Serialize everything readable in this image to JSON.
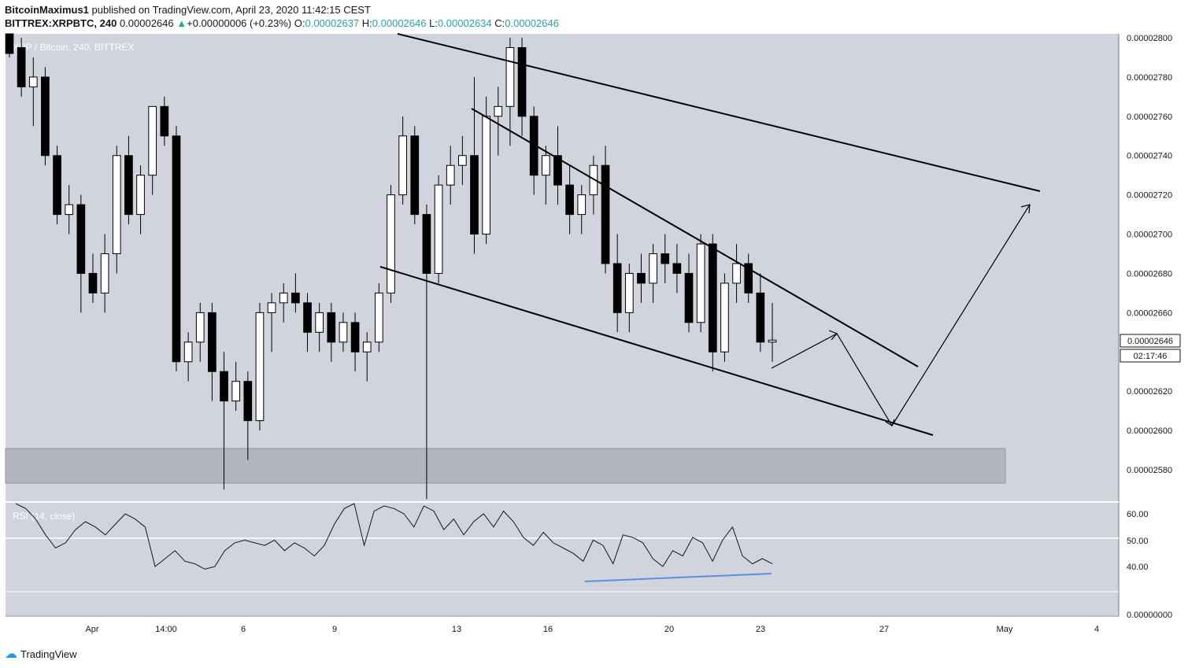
{
  "header": {
    "publisher": "BitcoinMaximus1",
    "published_text": "published on TradingView.com, April 23, 2020 11:42:15 CEST",
    "symbol": "BITTREX:XRPBTC, 240",
    "last": "0.00002646",
    "change_arrow": "▲",
    "change": "+0.00000006 (+0.23%)",
    "o_label": "O:",
    "o_value": "0.00002637",
    "h_label": "H:",
    "h_value": "0.00002646",
    "l_label": "L:",
    "l_value": "0.00002634",
    "c_label": "C:",
    "c_value": "0.00002646"
  },
  "chart_title": "XRP / Bitcoin, 240, BITTREX",
  "rsi_label": "RSI (14, close)",
  "price_label": "0.00002646",
  "countdown_label": "02:17:46",
  "price_axis_ticks": [
    "0.00002800",
    "0.00002780",
    "0.00002760",
    "0.00002740",
    "0.00002720",
    "0.00002700",
    "0.00002680",
    "0.00002660",
    "0.00002640",
    "0.00002620",
    "0.00002600",
    "0.00002580"
  ],
  "rsi_axis_ticks": [
    "60.00",
    "50.00",
    "40.00",
    "0.00000000"
  ],
  "time_axis_ticks": [
    "Apr",
    "14:00",
    "6",
    "9",
    "13",
    "16",
    "20",
    "23",
    "27",
    "May",
    "4"
  ],
  "brand": "TradingView",
  "colors": {
    "pane_bg": "#d1d4dc",
    "candle_up": "#ffffff",
    "candle_down": "#000000",
    "support_zone": "#b2b5be",
    "rsi_divergence": "#5b8fe0",
    "accent": "#26a69a"
  },
  "chart_data": {
    "type": "candlestick",
    "title": "XRP / Bitcoin, 240, BITTREX",
    "ylim": [
      2.56e-05,
      2.805e-05
    ],
    "x_ticks": [
      "Apr",
      "14:00",
      "6",
      "9",
      "13",
      "16",
      "20",
      "23",
      "27",
      "May",
      "4"
    ],
    "candles_ohlc_approx": [
      [
        2.805e-05,
        2.81e-05,
        2.79e-05,
        2.795e-05
      ],
      [
        2.795e-05,
        2.8e-05,
        2.77e-05,
        2.775e-05
      ],
      [
        2.775e-05,
        2.79e-05,
        2.755e-05,
        2.78e-05
      ],
      [
        2.78e-05,
        2.785e-05,
        2.735e-05,
        2.74e-05
      ],
      [
        2.74e-05,
        2.745e-05,
        2.705e-05,
        2.71e-05
      ],
      [
        2.71e-05,
        2.725e-05,
        2.7e-05,
        2.715e-05
      ],
      [
        2.715e-05,
        2.72e-05,
        2.66e-05,
        2.68e-05
      ],
      [
        2.68e-05,
        2.69e-05,
        2.665e-05,
        2.67e-05
      ],
      [
        2.67e-05,
        2.7e-05,
        2.66e-05,
        2.69e-05
      ],
      [
        2.69e-05,
        2.745e-05,
        2.68e-05,
        2.74e-05
      ],
      [
        2.74e-05,
        2.75e-05,
        2.705e-05,
        2.71e-05
      ],
      [
        2.71e-05,
        2.735e-05,
        2.7e-05,
        2.73e-05
      ],
      [
        2.73e-05,
        2.765e-05,
        2.72e-05,
        2.765e-05
      ],
      [
        2.765e-05,
        2.77e-05,
        2.745e-05,
        2.75e-05
      ],
      [
        2.75e-05,
        2.755e-05,
        2.63e-05,
        2.635e-05
      ],
      [
        2.635e-05,
        2.65e-05,
        2.625e-05,
        2.645e-05
      ],
      [
        2.645e-05,
        2.665e-05,
        2.635e-05,
        2.66e-05
      ],
      [
        2.66e-05,
        2.665e-05,
        2.615e-05,
        2.63e-05
      ],
      [
        2.63e-05,
        2.64e-05,
        2.57e-05,
        2.615e-05
      ],
      [
        2.615e-05,
        2.635e-05,
        2.61e-05,
        2.625e-05
      ],
      [
        2.625e-05,
        2.63e-05,
        2.585e-05,
        2.605e-05
      ],
      [
        2.605e-05,
        2.665e-05,
        2.6e-05,
        2.66e-05
      ],
      [
        2.66e-05,
        2.67e-05,
        2.64e-05,
        2.665e-05
      ],
      [
        2.665e-05,
        2.675e-05,
        2.655e-05,
        2.67e-05
      ],
      [
        2.67e-05,
        2.68e-05,
        2.66e-05,
        2.665e-05
      ],
      [
        2.665e-05,
        2.67e-05,
        2.64e-05,
        2.65e-05
      ],
      [
        2.65e-05,
        2.665e-05,
        2.64e-05,
        2.66e-05
      ],
      [
        2.66e-05,
        2.665e-05,
        2.635e-05,
        2.645e-05
      ],
      [
        2.645e-05,
        2.66e-05,
        2.64e-05,
        2.655e-05
      ],
      [
        2.655e-05,
        2.66e-05,
        2.63e-05,
        2.64e-05
      ],
      [
        2.64e-05,
        2.65e-05,
        2.625e-05,
        2.645e-05
      ],
      [
        2.645e-05,
        2.675e-05,
        2.64e-05,
        2.67e-05
      ],
      [
        2.67e-05,
        2.725e-05,
        2.665e-05,
        2.72e-05
      ],
      [
        2.72e-05,
        2.76e-05,
        2.715e-05,
        2.75e-05
      ],
      [
        2.75e-05,
        2.755e-05,
        2.705e-05,
        2.71e-05
      ],
      [
        2.71e-05,
        2.715e-05,
        2.565e-05,
        2.68e-05
      ],
      [
        2.68e-05,
        2.73e-05,
        2.675e-05,
        2.725e-05
      ],
      [
        2.725e-05,
        2.745e-05,
        2.715e-05,
        2.735e-05
      ],
      [
        2.735e-05,
        2.75e-05,
        2.725e-05,
        2.74e-05
      ],
      [
        2.74e-05,
        2.78e-05,
        2.69e-05,
        2.7e-05
      ],
      [
        2.7e-05,
        2.77e-05,
        2.695e-05,
        2.76e-05
      ],
      [
        2.76e-05,
        2.775e-05,
        2.74e-05,
        2.765e-05
      ],
      [
        2.765e-05,
        2.8e-05,
        2.745e-05,
        2.795e-05
      ],
      [
        2.795e-05,
        2.8e-05,
        2.75e-05,
        2.76e-05
      ],
      [
        2.76e-05,
        2.765e-05,
        2.72e-05,
        2.73e-05
      ],
      [
        2.73e-05,
        2.745e-05,
        2.715e-05,
        2.74e-05
      ],
      [
        2.74e-05,
        2.755e-05,
        2.715e-05,
        2.725e-05
      ],
      [
        2.725e-05,
        2.735e-05,
        2.7e-05,
        2.71e-05
      ],
      [
        2.71e-05,
        2.725e-05,
        2.7e-05,
        2.72e-05
      ],
      [
        2.72e-05,
        2.74e-05,
        2.71e-05,
        2.735e-05
      ],
      [
        2.735e-05,
        2.745e-05,
        2.68e-05,
        2.685e-05
      ],
      [
        2.685e-05,
        2.7e-05,
        2.65e-05,
        2.66e-05
      ],
      [
        2.66e-05,
        2.685e-05,
        2.65e-05,
        2.68e-05
      ],
      [
        2.68e-05,
        2.69e-05,
        2.665e-05,
        2.675e-05
      ],
      [
        2.675e-05,
        2.695e-05,
        2.665e-05,
        2.69e-05
      ],
      [
        2.69e-05,
        2.7e-05,
        2.675e-05,
        2.685e-05
      ],
      [
        2.685e-05,
        2.695e-05,
        2.67e-05,
        2.68e-05
      ],
      [
        2.68e-05,
        2.69e-05,
        2.65e-05,
        2.655e-05
      ],
      [
        2.655e-05,
        2.7e-05,
        2.65e-05,
        2.695e-05
      ],
      [
        2.695e-05,
        2.7e-05,
        2.63e-05,
        2.64e-05
      ],
      [
        2.64e-05,
        2.68e-05,
        2.635e-05,
        2.675e-05
      ],
      [
        2.675e-05,
        2.695e-05,
        2.665e-05,
        2.685e-05
      ],
      [
        2.685e-05,
        2.69e-05,
        2.665e-05,
        2.67e-05
      ],
      [
        2.67e-05,
        2.68e-05,
        2.64e-05,
        2.645e-05
      ],
      [
        2.645e-05,
        2.665e-05,
        2.635e-05,
        2.646e-05
      ]
    ],
    "series": [
      {
        "name": "RSI (14, close)",
        "y_range_shown": [
          30,
          65
        ],
        "level_line": 50
      }
    ],
    "annotations": [
      {
        "type": "trendline",
        "label": "upper-resistance",
        "from": "Apr 10",
        "to": "May 2",
        "values": [
          2.8e-05,
          2.721e-05
        ]
      },
      {
        "type": "trendline",
        "label": "descending-wedge-top",
        "from": "Apr 13",
        "to": "Apr 28",
        "values": [
          2.764e-05,
          2.634e-05
        ]
      },
      {
        "type": "trendline",
        "label": "descending-wedge-bottom",
        "from": "Apr 10",
        "to": "Apr 28",
        "values": [
          2.684e-05,
          2.599e-05
        ]
      },
      {
        "type": "zone",
        "label": "support",
        "range": [
          2.572e-05,
          2.59e-05
        ]
      },
      {
        "type": "projection",
        "label": "forecast-path",
        "points": [
          2.632e-05,
          2.654e-05,
          2.601e-05,
          2.718e-05
        ]
      },
      {
        "type": "rsi-divergence-line",
        "values": [
          34,
          36
        ]
      }
    ]
  }
}
